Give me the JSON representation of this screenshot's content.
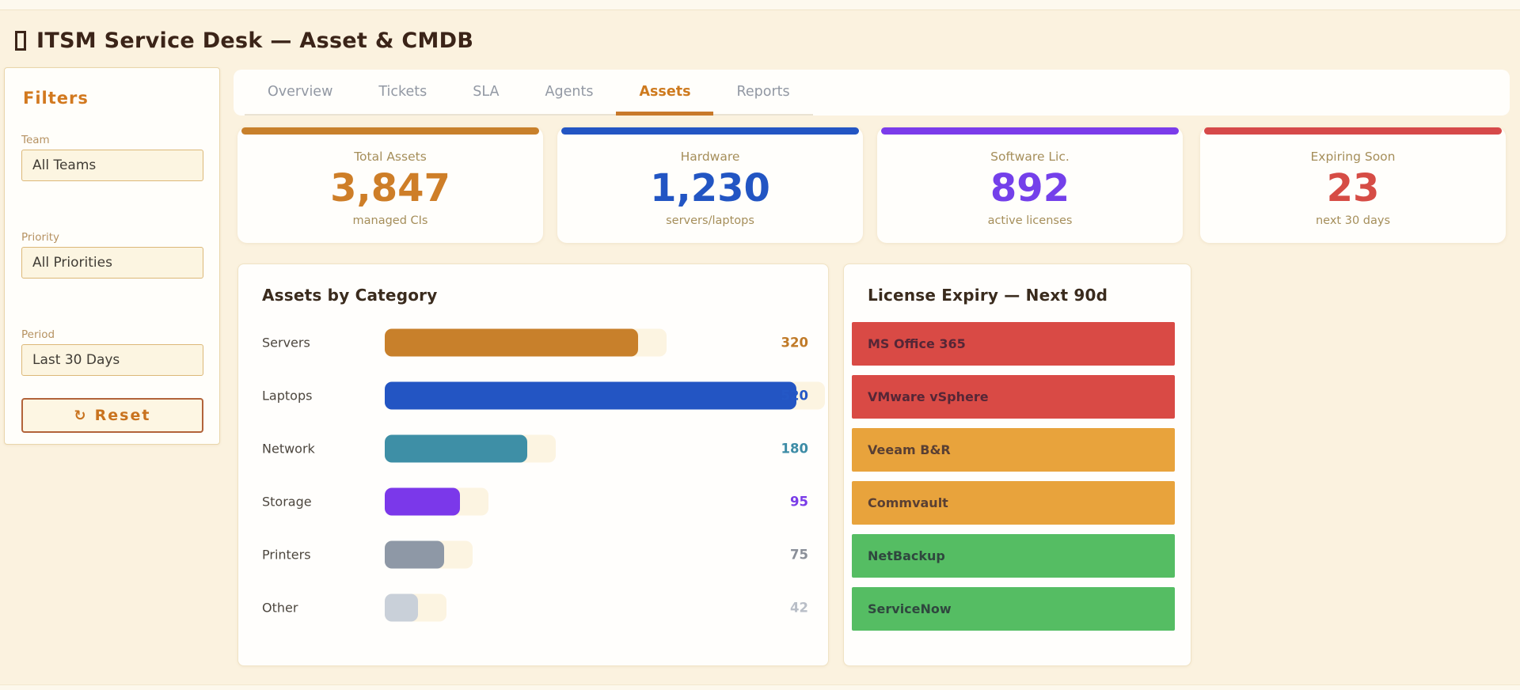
{
  "app": {
    "title": "ITSM Service Desk — Asset & CMDB"
  },
  "theme": {
    "background": "#fbf2df",
    "accent_orange": "#ce7a1e",
    "accent_blue": "#2355c3",
    "accent_purple": "#7b3cea",
    "accent_red": "#d64949"
  },
  "filters": {
    "heading": "Filters",
    "groups": [
      {
        "label": "Team",
        "value": "All Teams"
      },
      {
        "label": "Priority",
        "value": "All Priorities"
      },
      {
        "label": "Period",
        "value": "Last 30 Days"
      }
    ],
    "reset_icon": "↻",
    "reset_label": "Reset"
  },
  "tabs": [
    {
      "label": "Overview",
      "active": false
    },
    {
      "label": "Tickets",
      "active": false
    },
    {
      "label": "SLA",
      "active": false
    },
    {
      "label": "Agents",
      "active": false
    },
    {
      "label": "Assets",
      "active": true
    },
    {
      "label": "Reports",
      "active": false
    }
  ],
  "stats": [
    {
      "label": "Total Assets",
      "value": "3,847",
      "sub": "managed CIs",
      "color": "#c8802b",
      "value_color": "#ce7e28"
    },
    {
      "label": "Hardware",
      "value": "1,230",
      "sub": "servers/laptops",
      "color": "#2355c3",
      "value_color": "#2255c3"
    },
    {
      "label": "Software Lic.",
      "value": "892",
      "sub": "active licenses",
      "color": "#7b3cea",
      "value_color": "#7440ea"
    },
    {
      "label": "Expiring Soon",
      "value": "23",
      "sub": "next 30 days",
      "color": "#d64949",
      "value_color": "#d64c45"
    }
  ],
  "chart_data": {
    "type": "bar",
    "orientation": "horizontal",
    "title": "Assets by Category",
    "categories": [
      "Servers",
      "Laptops",
      "Network",
      "Storage",
      "Printers",
      "Other"
    ],
    "values": [
      320,
      520,
      180,
      95,
      75,
      42
    ],
    "bar_colors": [
      "#c8802b",
      "#2355c3",
      "#3e8fa6",
      "#7b38ea",
      "#8e98a6",
      "#c9d0d9"
    ],
    "value_colors": [
      "#c07a28",
      "#2458c6",
      "#3d8ca6",
      "#7a3ce8",
      "#8a8f98",
      "#b9bec7"
    ],
    "xlim": [
      0,
      520
    ],
    "grid": false,
    "value_labels": "right-aligned"
  },
  "licenses": {
    "title": "License Expiry — Next 90d",
    "items": [
      {
        "name": "MS Office 365",
        "color": "#d94a45"
      },
      {
        "name": "VMware vSphere",
        "color": "#d94a45"
      },
      {
        "name": "Veeam B&R",
        "color": "#e8a33c"
      },
      {
        "name": "Commvault",
        "color": "#e8a33c"
      },
      {
        "name": "NetBackup",
        "color": "#55bd63"
      },
      {
        "name": "ServiceNow",
        "color": "#55bd63"
      }
    ]
  }
}
